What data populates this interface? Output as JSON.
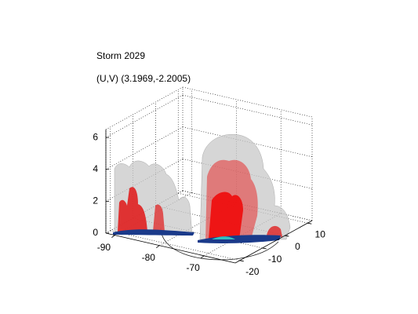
{
  "chart_data": {
    "type": "surface3d",
    "title": "Storm 2029",
    "subtitle": "(U,V) (3.1969,-2.2005)",
    "xlim": [
      -92,
      -63
    ],
    "ylim": [
      -22,
      12
    ],
    "zlim": [
      0,
      6.5
    ],
    "xticks": [
      -90,
      -80,
      -70
    ],
    "yticks": [
      -20,
      -10,
      0,
      10
    ],
    "zticks": [
      0,
      2,
      4,
      6
    ],
    "grid": true
  }
}
